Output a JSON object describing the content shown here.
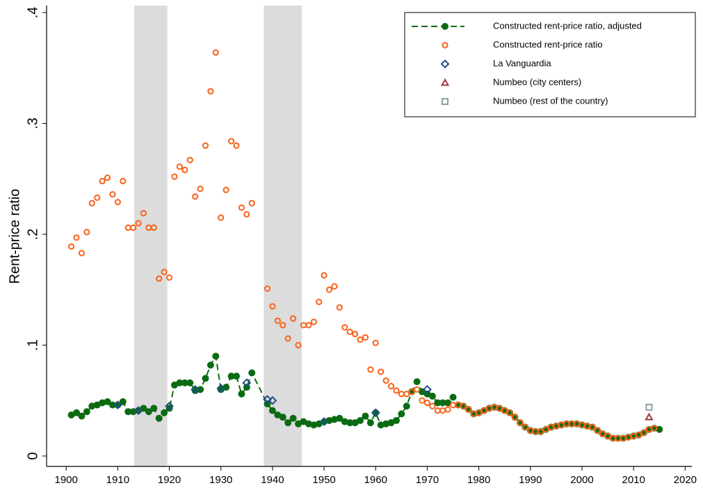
{
  "chart_data": {
    "type": "scatter",
    "y_label": "Rent-price ratio",
    "xlim": [
      1896.2,
      2021.3
    ],
    "ylim": [
      -0.0094,
      0.4063
    ],
    "xticks": [
      1900,
      1910,
      1920,
      1930,
      1940,
      1950,
      1960,
      1970,
      1980,
      1990,
      2000,
      2010,
      2020
    ],
    "yticks": [
      0,
      {
        "value": 0.1,
        "label": ".1"
      },
      {
        "value": 0.2,
        "label": ".2"
      },
      {
        "value": 0.3,
        "label": ".3"
      },
      {
        "value": 0.4,
        "label": ".4"
      }
    ],
    "shaded_periods": [
      [
        1913.2,
        1919.6
      ],
      [
        1938.3,
        1945.7
      ]
    ],
    "shade_color": "#dcdcdc",
    "legend": "top-right",
    "series": [
      {
        "name": "Constructed rent-price ratio, adjusted",
        "color": "#0b6b12",
        "marker": "circle-filled",
        "line": "dashed",
        "x": [
          1901,
          1902,
          1903,
          1904,
          1905,
          1906,
          1907,
          1908,
          1909,
          1910,
          1911,
          1912,
          1913,
          1914,
          1915,
          1916,
          1917,
          1918,
          1919,
          1920,
          1921,
          1922,
          1923,
          1924,
          1925,
          1926,
          1927,
          1928,
          1929,
          1930,
          1931,
          1932,
          1933,
          1934,
          1935,
          1936,
          1939,
          1940,
          1941,
          1942,
          1943,
          1944,
          1945,
          1946,
          1947,
          1948,
          1949,
          1950,
          1951,
          1952,
          1953,
          1954,
          1955,
          1956,
          1957,
          1958,
          1959,
          1960,
          1961,
          1962,
          1963,
          1964,
          1965,
          1966,
          1967,
          1968,
          1969,
          1970,
          1971,
          1972,
          1973,
          1974,
          1975,
          1976,
          1977,
          1978,
          1979,
          1980,
          1981,
          1982,
          1983,
          1984,
          1985,
          1986,
          1987,
          1988,
          1989,
          1990,
          1991,
          1992,
          1993,
          1994,
          1995,
          1996,
          1997,
          1998,
          1999,
          2000,
          2001,
          2002,
          2003,
          2004,
          2005,
          2006,
          2007,
          2008,
          2009,
          2010,
          2011,
          2012,
          2013,
          2014,
          2015
        ],
        "values": [
          0.037,
          0.039,
          0.036,
          0.04,
          0.045,
          0.046,
          0.048,
          0.049,
          0.046,
          0.046,
          0.049,
          0.04,
          0.04,
          0.041,
          0.043,
          0.04,
          0.043,
          0.034,
          0.039,
          0.043,
          0.064,
          0.066,
          0.066,
          0.066,
          0.059,
          0.06,
          0.07,
          0.082,
          0.09,
          0.06,
          0.062,
          0.072,
          0.072,
          0.056,
          0.062,
          0.075,
          0.047,
          0.041,
          0.037,
          0.035,
          0.03,
          0.034,
          0.029,
          0.031,
          0.029,
          0.028,
          0.029,
          0.031,
          0.032,
          0.033,
          0.034,
          0.031,
          0.03,
          0.03,
          0.032,
          0.036,
          0.03,
          0.039,
          0.028,
          0.029,
          0.03,
          0.032,
          0.038,
          0.045,
          0.058,
          0.067,
          0.058,
          0.056,
          0.054,
          0.048,
          0.048,
          0.048,
          0.053,
          0.046,
          0.045,
          0.042,
          0.038,
          0.039,
          0.041,
          0.043,
          0.044,
          0.043,
          0.041,
          0.039,
          0.035,
          0.03,
          0.026,
          0.023,
          0.022,
          0.022,
          0.024,
          0.026,
          0.027,
          0.028,
          0.029,
          0.029,
          0.029,
          0.028,
          0.027,
          0.026,
          0.023,
          0.02,
          0.018,
          0.016,
          0.016,
          0.016,
          0.017,
          0.018,
          0.019,
          0.021,
          0.024,
          0.025,
          0.024
        ]
      },
      {
        "name": "Constructed rent-price ratio",
        "color": "#fa6218",
        "marker": "circle",
        "x": [
          1901,
          1902,
          1903,
          1904,
          1905,
          1906,
          1907,
          1908,
          1909,
          1910,
          1911,
          1912,
          1913,
          1914,
          1915,
          1916,
          1917,
          1918,
          1919,
          1920,
          1921,
          1922,
          1923,
          1924,
          1925,
          1926,
          1927,
          1928,
          1929,
          1930,
          1931,
          1932,
          1933,
          1934,
          1935,
          1936,
          1939,
          1940,
          1941,
          1942,
          1943,
          1944,
          1945,
          1946,
          1947,
          1948,
          1949,
          1950,
          1951,
          1952,
          1953,
          1954,
          1955,
          1956,
          1957,
          1958,
          1959,
          1960,
          1961,
          1962,
          1963,
          1964,
          1965,
          1966,
          1967,
          1968,
          1969,
          1970,
          1971,
          1972,
          1973,
          1974,
          1975,
          1976,
          1977,
          1978,
          1979,
          1980,
          1981,
          1982,
          1983,
          1984,
          1985,
          1986,
          1987,
          1988,
          1989,
          1990,
          1991,
          1992,
          1993,
          1994,
          1995,
          1996,
          1997,
          1998,
          1999,
          2000,
          2001,
          2002,
          2003,
          2004,
          2005,
          2006,
          2007,
          2008,
          2009,
          2010,
          2011,
          2012,
          2013,
          2014
        ],
        "values": [
          0.189,
          0.197,
          0.183,
          0.202,
          0.228,
          0.233,
          0.248,
          0.251,
          0.236,
          0.229,
          0.248,
          0.206,
          0.206,
          0.21,
          0.219,
          0.206,
          0.206,
          0.16,
          0.166,
          0.161,
          0.252,
          0.261,
          0.258,
          0.267,
          0.234,
          0.241,
          0.28,
          0.329,
          0.364,
          0.215,
          0.24,
          0.284,
          0.28,
          0.224,
          0.218,
          0.228,
          0.151,
          0.135,
          0.122,
          0.118,
          0.106,
          0.124,
          0.1,
          0.118,
          0.118,
          0.121,
          0.139,
          0.163,
          0.15,
          0.153,
          0.134,
          0.116,
          0.112,
          0.11,
          0.105,
          0.107,
          0.078,
          0.102,
          0.076,
          0.068,
          0.063,
          0.059,
          0.056,
          0.056,
          0.058,
          0.06,
          0.05,
          0.048,
          0.045,
          0.041,
          0.041,
          0.042,
          0.046,
          0.046,
          0.045,
          0.042,
          0.038,
          0.039,
          0.041,
          0.043,
          0.044,
          0.043,
          0.041,
          0.039,
          0.035,
          0.03,
          0.026,
          0.023,
          0.022,
          0.022,
          0.024,
          0.026,
          0.027,
          0.028,
          0.029,
          0.029,
          0.029,
          0.028,
          0.027,
          0.026,
          0.023,
          0.02,
          0.018,
          0.016,
          0.016,
          0.016,
          0.017,
          0.018,
          0.019,
          0.021,
          0.024,
          0.025
        ]
      },
      {
        "name": "La Vanguardia",
        "color": "#1f4e8c",
        "marker": "diamond",
        "x": [
          1910,
          1914,
          1920,
          1925,
          1930,
          1935,
          1939,
          1940,
          1950,
          1960,
          1970
        ],
        "values": [
          0.046,
          0.041,
          0.045,
          0.06,
          0.061,
          0.066,
          0.051,
          0.05,
          0.031,
          0.039,
          0.06
        ]
      },
      {
        "name": "Numbeo (city centers)",
        "color": "#a03a3a",
        "marker": "triangle",
        "x": [
          2013
        ],
        "values": [
          0.035
        ]
      },
      {
        "name": "Numbeo (rest of the country)",
        "color": "#8aa39e",
        "marker": "square",
        "x": [
          2013
        ],
        "values": [
          0.044
        ]
      }
    ]
  }
}
